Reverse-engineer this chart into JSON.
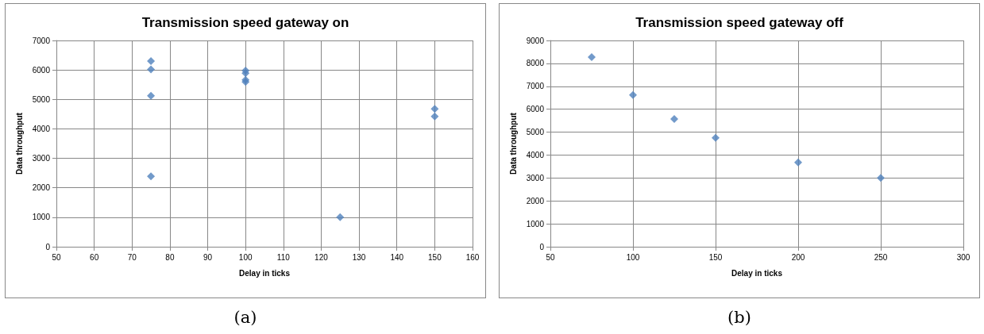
{
  "chart_data": [
    {
      "type": "scatter",
      "title": "Transmission speed gateway on",
      "xlabel": "Delay in ticks",
      "ylabel": "Data throughput",
      "x": [
        75,
        75,
        75,
        75,
        100,
        100,
        100,
        100,
        125,
        150,
        150
      ],
      "values": [
        6300,
        6020,
        5120,
        2390,
        5980,
        5890,
        5660,
        5590,
        1000,
        4680,
        4420
      ],
      "color": "#4f81bd",
      "marker": "diamond",
      "xlim": [
        50,
        160
      ],
      "xticks": [
        50,
        60,
        70,
        80,
        90,
        100,
        110,
        120,
        130,
        140,
        150,
        160
      ],
      "ylim": [
        0,
        7000
      ],
      "yticks": [
        0,
        1000,
        2000,
        3000,
        4000,
        5000,
        6000,
        7000
      ],
      "grid": true,
      "annotations": [
        "(a)"
      ]
    },
    {
      "type": "scatter",
      "title": "Transmission speed gateway off",
      "xlabel": "Delay in ticks",
      "ylabel": "Data throughput",
      "x": [
        75,
        100,
        125,
        150,
        200,
        250
      ],
      "values": [
        8270,
        6620,
        5570,
        4750,
        3680,
        3000
      ],
      "color": "#4f81bd",
      "marker": "diamond",
      "xlim": [
        50,
        300
      ],
      "xticks": [
        50,
        100,
        150,
        200,
        250,
        300
      ],
      "ylim": [
        0,
        9000
      ],
      "yticks": [
        0,
        1000,
        2000,
        3000,
        4000,
        5000,
        6000,
        7000,
        8000,
        9000
      ],
      "grid": true,
      "annotations": [
        "(b)"
      ]
    }
  ]
}
